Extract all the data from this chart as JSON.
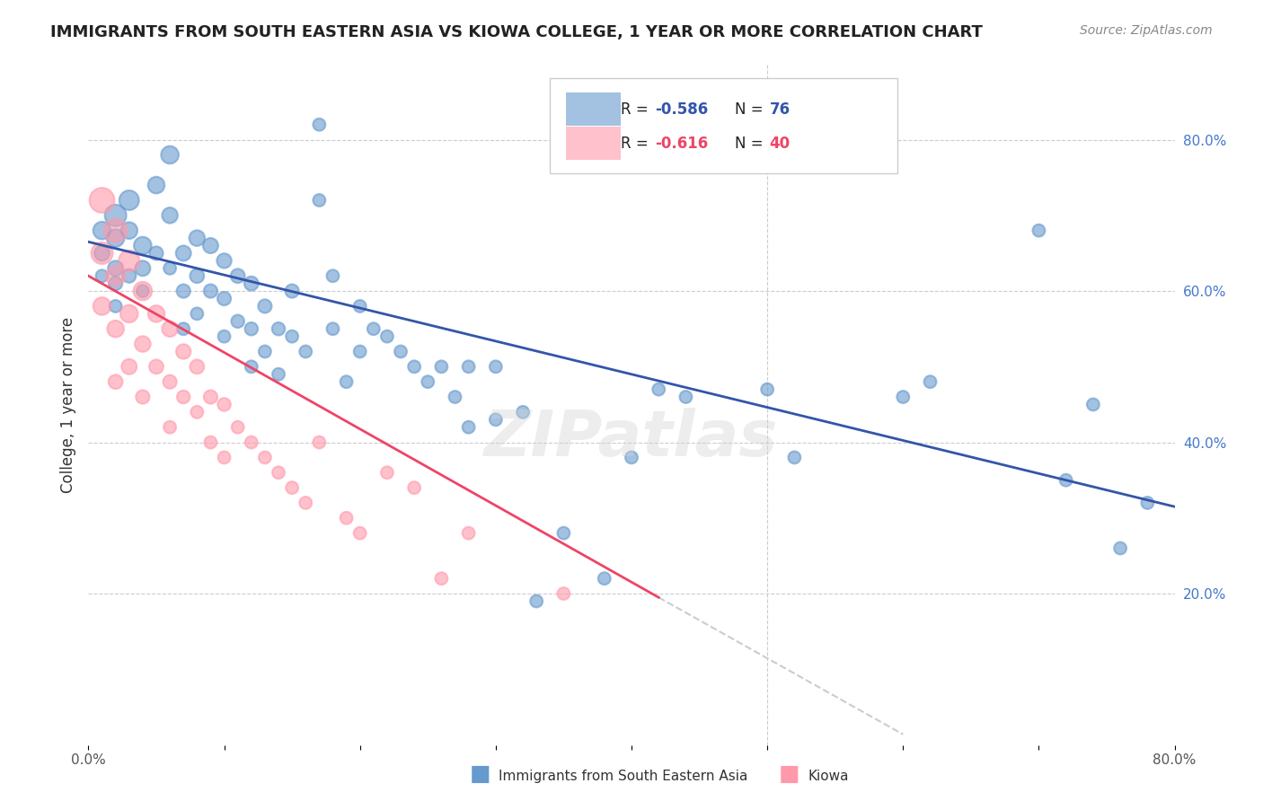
{
  "title": "IMMIGRANTS FROM SOUTH EASTERN ASIA VS KIOWA COLLEGE, 1 YEAR OR MORE CORRELATION CHART",
  "source": "Source: ZipAtlas.com",
  "ylabel": "College, 1 year or more",
  "xlim": [
    0.0,
    0.8
  ],
  "ylim": [
    0.0,
    0.9
  ],
  "xtick_positions": [
    0.0,
    0.1,
    0.2,
    0.3,
    0.4,
    0.5,
    0.6,
    0.7,
    0.8
  ],
  "xticklabels": [
    "0.0%",
    "",
    "",
    "",
    "",
    "",
    "",
    "",
    "80.0%"
  ],
  "yticks_right": [
    0.2,
    0.4,
    0.6,
    0.8
  ],
  "ytick_right_labels": [
    "20.0%",
    "40.0%",
    "60.0%",
    "80.0%"
  ],
  "legend_r1": "-0.586",
  "legend_n1": "76",
  "legend_r2": "-0.616",
  "legend_n2": "40",
  "blue_color": "#6699CC",
  "pink_color": "#FF99AA",
  "blue_line_color": "#3355AA",
  "pink_line_color": "#EE4466",
  "trend_line_color": "#CCCCCC",
  "watermark": "ZIPatlas",
  "blue_scatter_x": [
    0.01,
    0.01,
    0.01,
    0.02,
    0.02,
    0.02,
    0.02,
    0.02,
    0.03,
    0.03,
    0.03,
    0.04,
    0.04,
    0.04,
    0.05,
    0.05,
    0.06,
    0.06,
    0.06,
    0.07,
    0.07,
    0.07,
    0.08,
    0.08,
    0.08,
    0.09,
    0.09,
    0.1,
    0.1,
    0.1,
    0.11,
    0.11,
    0.12,
    0.12,
    0.12,
    0.13,
    0.13,
    0.14,
    0.14,
    0.15,
    0.15,
    0.16,
    0.17,
    0.17,
    0.18,
    0.18,
    0.19,
    0.2,
    0.2,
    0.21,
    0.22,
    0.23,
    0.24,
    0.25,
    0.26,
    0.27,
    0.28,
    0.28,
    0.3,
    0.3,
    0.32,
    0.33,
    0.35,
    0.38,
    0.4,
    0.42,
    0.44,
    0.5,
    0.52,
    0.6,
    0.62,
    0.7,
    0.72,
    0.74,
    0.76,
    0.78
  ],
  "blue_scatter_y": [
    0.68,
    0.65,
    0.62,
    0.7,
    0.67,
    0.63,
    0.61,
    0.58,
    0.72,
    0.68,
    0.62,
    0.66,
    0.63,
    0.6,
    0.74,
    0.65,
    0.78,
    0.7,
    0.63,
    0.65,
    0.6,
    0.55,
    0.67,
    0.62,
    0.57,
    0.66,
    0.6,
    0.64,
    0.59,
    0.54,
    0.62,
    0.56,
    0.61,
    0.55,
    0.5,
    0.58,
    0.52,
    0.55,
    0.49,
    0.6,
    0.54,
    0.52,
    0.82,
    0.72,
    0.62,
    0.55,
    0.48,
    0.58,
    0.52,
    0.55,
    0.54,
    0.52,
    0.5,
    0.48,
    0.5,
    0.46,
    0.5,
    0.42,
    0.5,
    0.43,
    0.44,
    0.19,
    0.28,
    0.22,
    0.38,
    0.47,
    0.46,
    0.47,
    0.38,
    0.46,
    0.48,
    0.68,
    0.35,
    0.45,
    0.26,
    0.32
  ],
  "blue_scatter_size": [
    200,
    150,
    100,
    300,
    200,
    150,
    120,
    100,
    250,
    180,
    120,
    200,
    150,
    100,
    180,
    120,
    200,
    160,
    100,
    150,
    120,
    100,
    160,
    130,
    100,
    150,
    120,
    140,
    120,
    100,
    130,
    110,
    130,
    110,
    100,
    120,
    100,
    110,
    100,
    120,
    100,
    100,
    100,
    100,
    100,
    100,
    100,
    100,
    100,
    100,
    100,
    100,
    100,
    100,
    100,
    100,
    100,
    100,
    100,
    100,
    100,
    100,
    100,
    100,
    100,
    100,
    100,
    100,
    100,
    100,
    100,
    100,
    100,
    100,
    100,
    100
  ],
  "pink_scatter_x": [
    0.01,
    0.01,
    0.01,
    0.02,
    0.02,
    0.02,
    0.02,
    0.03,
    0.03,
    0.03,
    0.04,
    0.04,
    0.04,
    0.05,
    0.05,
    0.06,
    0.06,
    0.06,
    0.07,
    0.07,
    0.08,
    0.08,
    0.09,
    0.09,
    0.1,
    0.1,
    0.11,
    0.12,
    0.13,
    0.14,
    0.15,
    0.16,
    0.17,
    0.19,
    0.2,
    0.22,
    0.24,
    0.26,
    0.28,
    0.35
  ],
  "pink_scatter_y": [
    0.72,
    0.65,
    0.58,
    0.68,
    0.62,
    0.55,
    0.48,
    0.64,
    0.57,
    0.5,
    0.6,
    0.53,
    0.46,
    0.57,
    0.5,
    0.55,
    0.48,
    0.42,
    0.52,
    0.46,
    0.5,
    0.44,
    0.46,
    0.4,
    0.45,
    0.38,
    0.42,
    0.4,
    0.38,
    0.36,
    0.34,
    0.32,
    0.4,
    0.3,
    0.28,
    0.36,
    0.34,
    0.22,
    0.28,
    0.2
  ],
  "pink_scatter_size": [
    400,
    300,
    200,
    350,
    250,
    180,
    130,
    280,
    200,
    150,
    220,
    160,
    120,
    180,
    130,
    160,
    120,
    100,
    140,
    110,
    130,
    100,
    120,
    100,
    110,
    100,
    100,
    100,
    100,
    100,
    100,
    100,
    100,
    100,
    100,
    100,
    100,
    100,
    100,
    100
  ],
  "blue_trend_x0": 0.0,
  "blue_trend_y0": 0.665,
  "blue_trend_x1": 0.8,
  "blue_trend_y1": 0.315,
  "pink_trend_x0": 0.0,
  "pink_trend_y0": 0.62,
  "pink_trend_x1": 0.42,
  "pink_trend_y1": 0.195,
  "dash_trend_x0": 0.42,
  "dash_trend_y0": 0.195,
  "dash_trend_x1": 0.6,
  "dash_trend_y1": 0.014,
  "legend_label1": "Immigrants from South Eastern Asia",
  "legend_label2": "Kiowa"
}
